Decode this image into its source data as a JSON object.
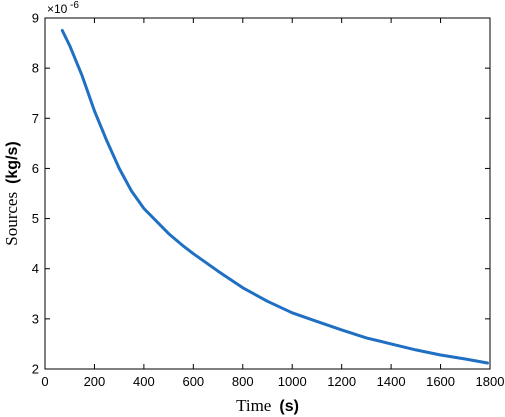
{
  "chart_data": {
    "type": "line",
    "xlabel": {
      "text": "Time",
      "unit": "(s)"
    },
    "ylabel": {
      "text": "Sources",
      "unit": "(kg/s)"
    },
    "y_multiplier": "×10",
    "y_exponent": "-6",
    "xlim": [
      0,
      1800
    ],
    "ylim": [
      2,
      9
    ],
    "x_ticks": [
      0,
      200,
      400,
      600,
      800,
      1000,
      1200,
      1400,
      1600,
      1800
    ],
    "y_ticks": [
      2,
      3,
      4,
      5,
      6,
      7,
      8,
      9
    ],
    "grid": false,
    "line_color": "#1f6fc2",
    "series": [
      {
        "x": [
          70,
          100,
          150,
          200,
          250,
          300,
          350,
          400,
          450,
          500,
          560,
          600,
          700,
          800,
          900,
          1000,
          1100,
          1200,
          1300,
          1400,
          1500,
          1600,
          1700,
          1790
        ],
        "values": [
          8.75,
          8.45,
          7.85,
          7.15,
          6.55,
          6.0,
          5.55,
          5.2,
          4.95,
          4.7,
          4.45,
          4.3,
          3.95,
          3.62,
          3.35,
          3.12,
          2.95,
          2.78,
          2.62,
          2.5,
          2.38,
          2.28,
          2.2,
          2.12
        ]
      }
    ]
  }
}
